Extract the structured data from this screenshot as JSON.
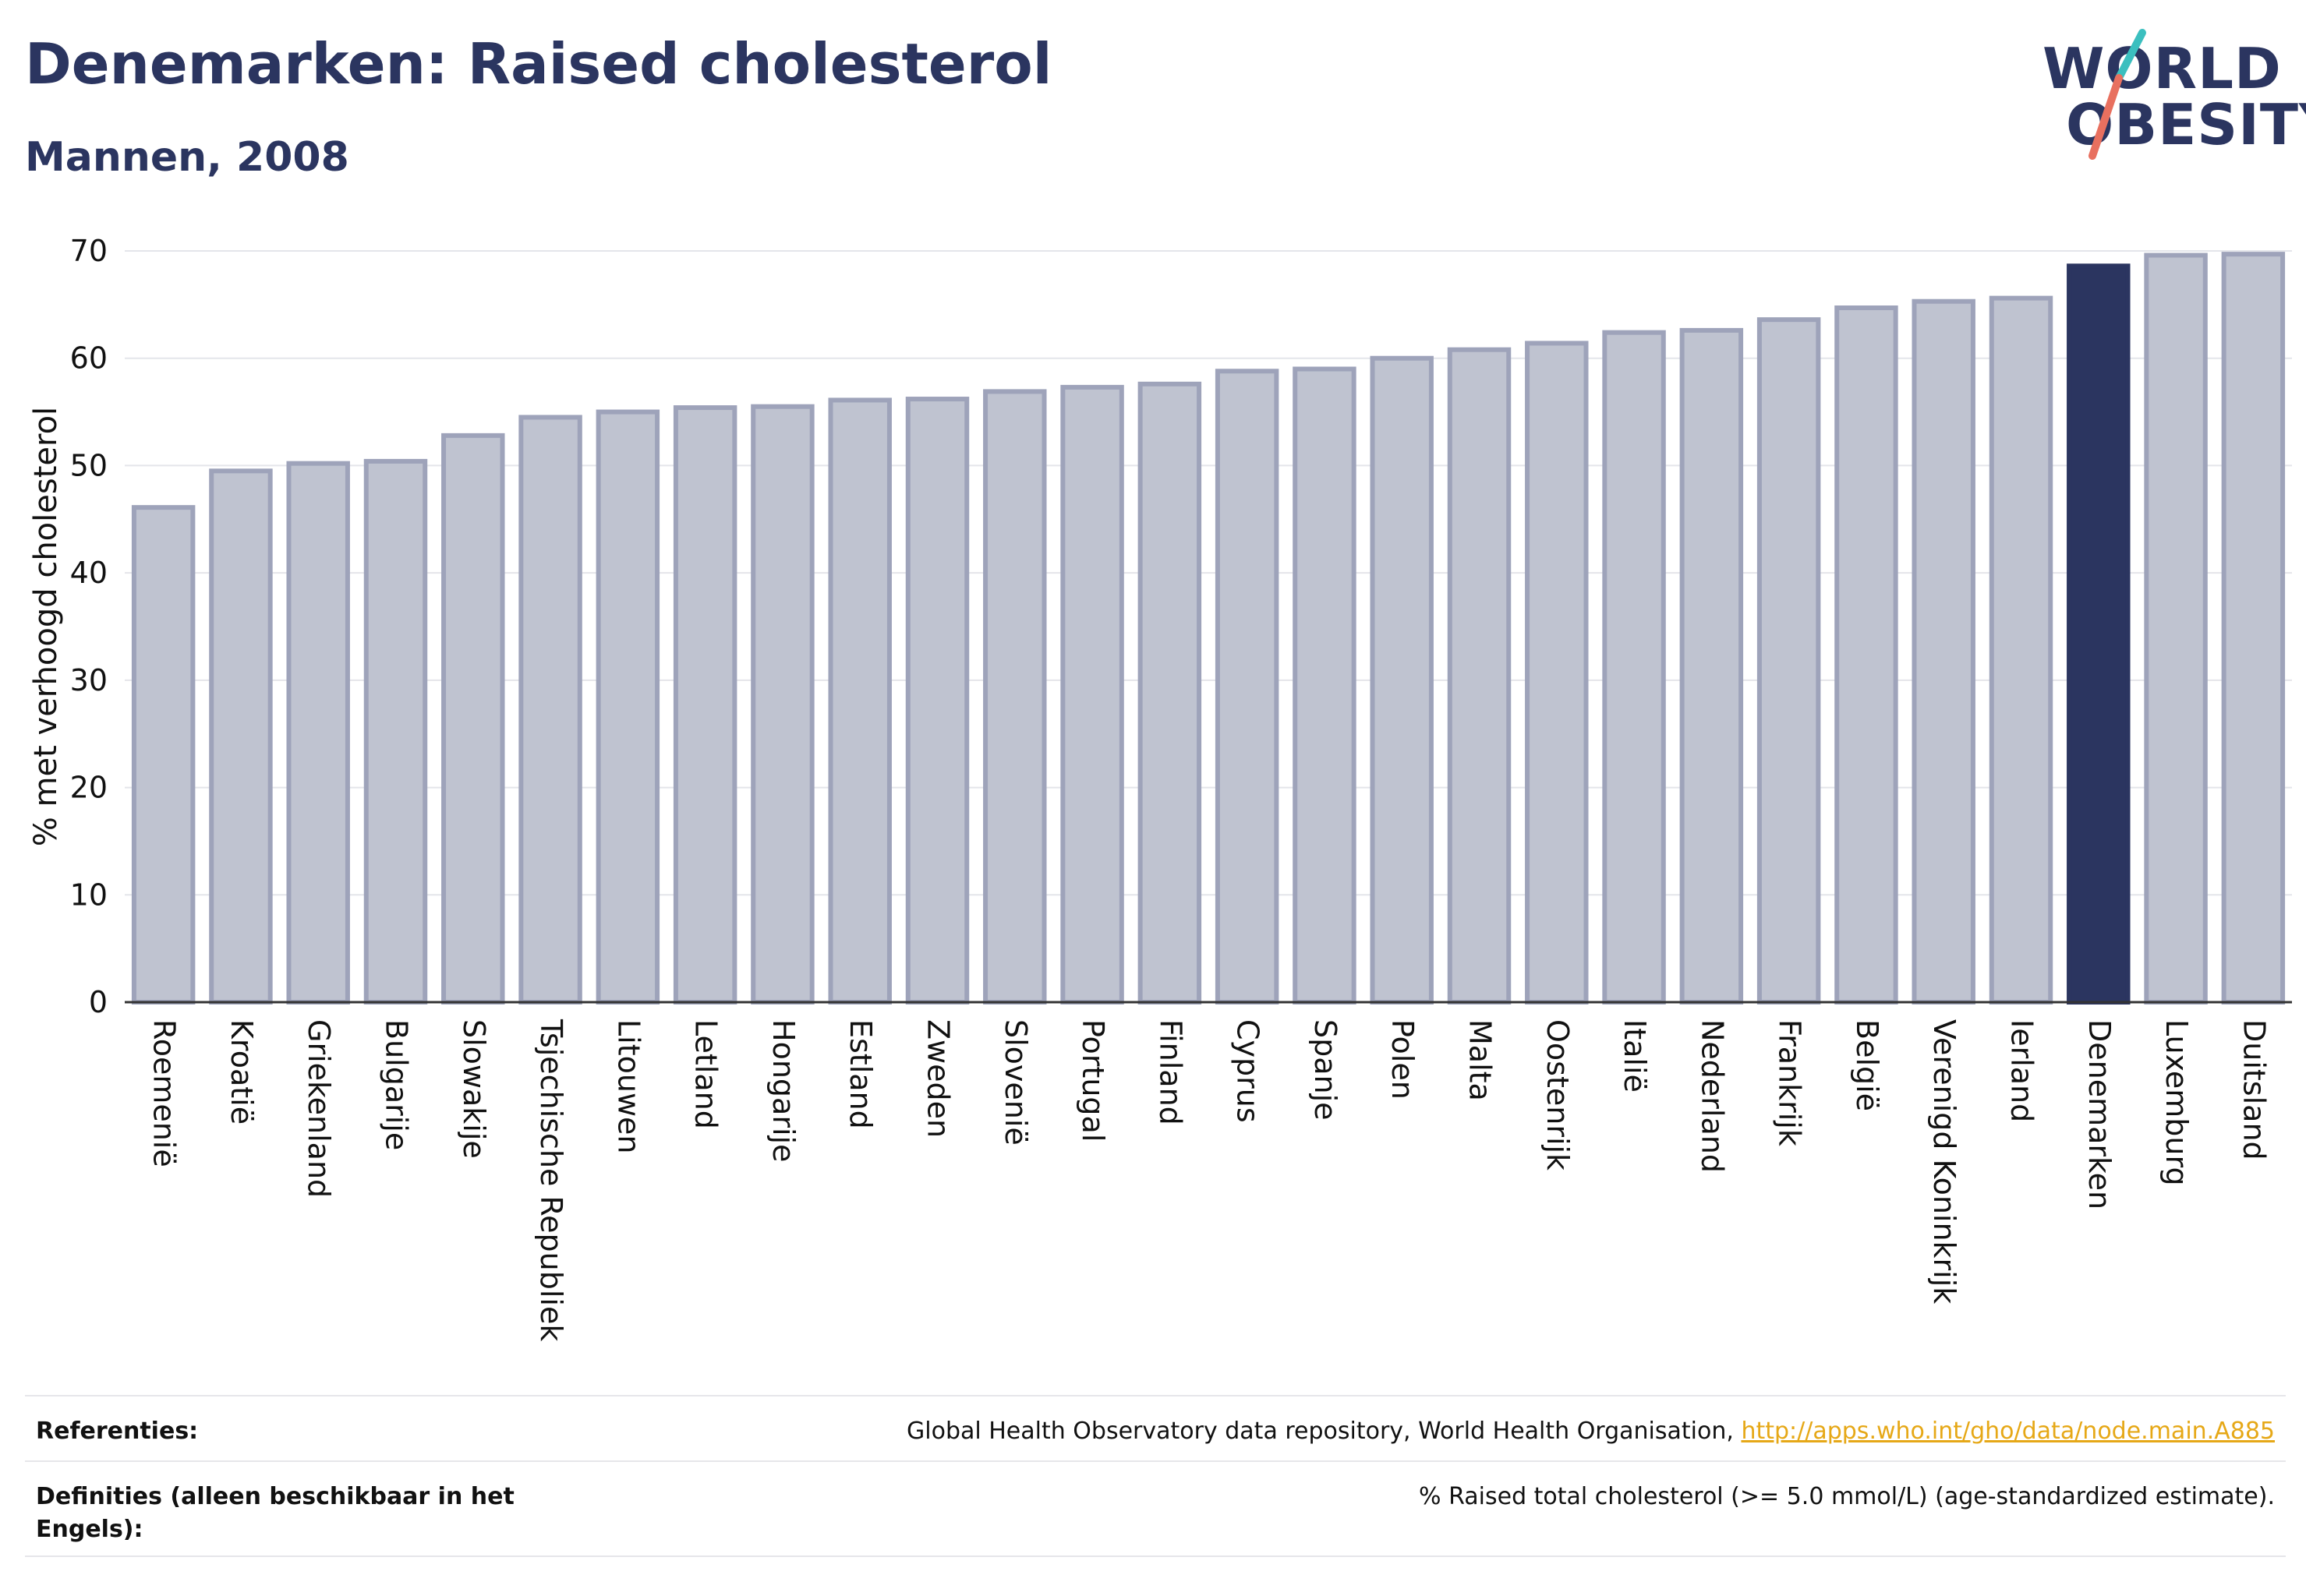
{
  "header": {
    "title": "Denemarken: Raised cholesterol",
    "subtitle": "Mannen, 2008"
  },
  "logo": {
    "line1": "WORLD",
    "line2": "OBESITY",
    "colors": {
      "text": "#2b3560",
      "slash_top": "#3bbfbf",
      "slash_bottom": "#e8705f"
    }
  },
  "chart_data": {
    "type": "bar",
    "title": "",
    "xlabel": "",
    "ylabel": "% met verhoogd cholesterol",
    "ylim": [
      0,
      70
    ],
    "yticks": [
      0,
      10,
      20,
      30,
      40,
      50,
      60,
      70
    ],
    "grid": true,
    "highlight": "Denemarken",
    "colors": {
      "bar": "#bfc3d0",
      "bar_edge": "#9ea3ba",
      "highlight": "#2b3560"
    },
    "categories": [
      "Roemenië",
      "Kroatië",
      "Griekenland",
      "Bulgarije",
      "Slowakije",
      "Tsjechische Republiek",
      "Litouwen",
      "Letland",
      "Hongarije",
      "Estland",
      "Zweden",
      "Slovenië",
      "Portugal",
      "Finland",
      "Cyprus",
      "Spanje",
      "Polen",
      "Malta",
      "Oostenrijk",
      "Italië",
      "Nederland",
      "Frankrijk",
      "België",
      "Verenigd Koninkrijk",
      "Ierland",
      "Denemarken",
      "Luxemburg",
      "Duitsland"
    ],
    "values": [
      46.1,
      49.5,
      50.2,
      50.4,
      52.8,
      54.5,
      55.0,
      55.4,
      55.5,
      56.1,
      56.2,
      56.9,
      57.3,
      57.6,
      58.8,
      59.0,
      60.0,
      60.8,
      61.4,
      62.4,
      62.6,
      63.6,
      64.7,
      65.3,
      65.6,
      68.6,
      69.6,
      69.7
    ]
  },
  "references": {
    "label": "Referenties:",
    "text": "Global Health Observatory data repository, World Health Organisation, ",
    "link": "http://apps.who.int/gho/data/node.main.A885"
  },
  "definitions": {
    "label": "Definities (alleen beschikbaar in het Engels):",
    "text": "% Raised total cholesterol (>= 5.0 mmol/L) (age-standardized estimate)."
  }
}
